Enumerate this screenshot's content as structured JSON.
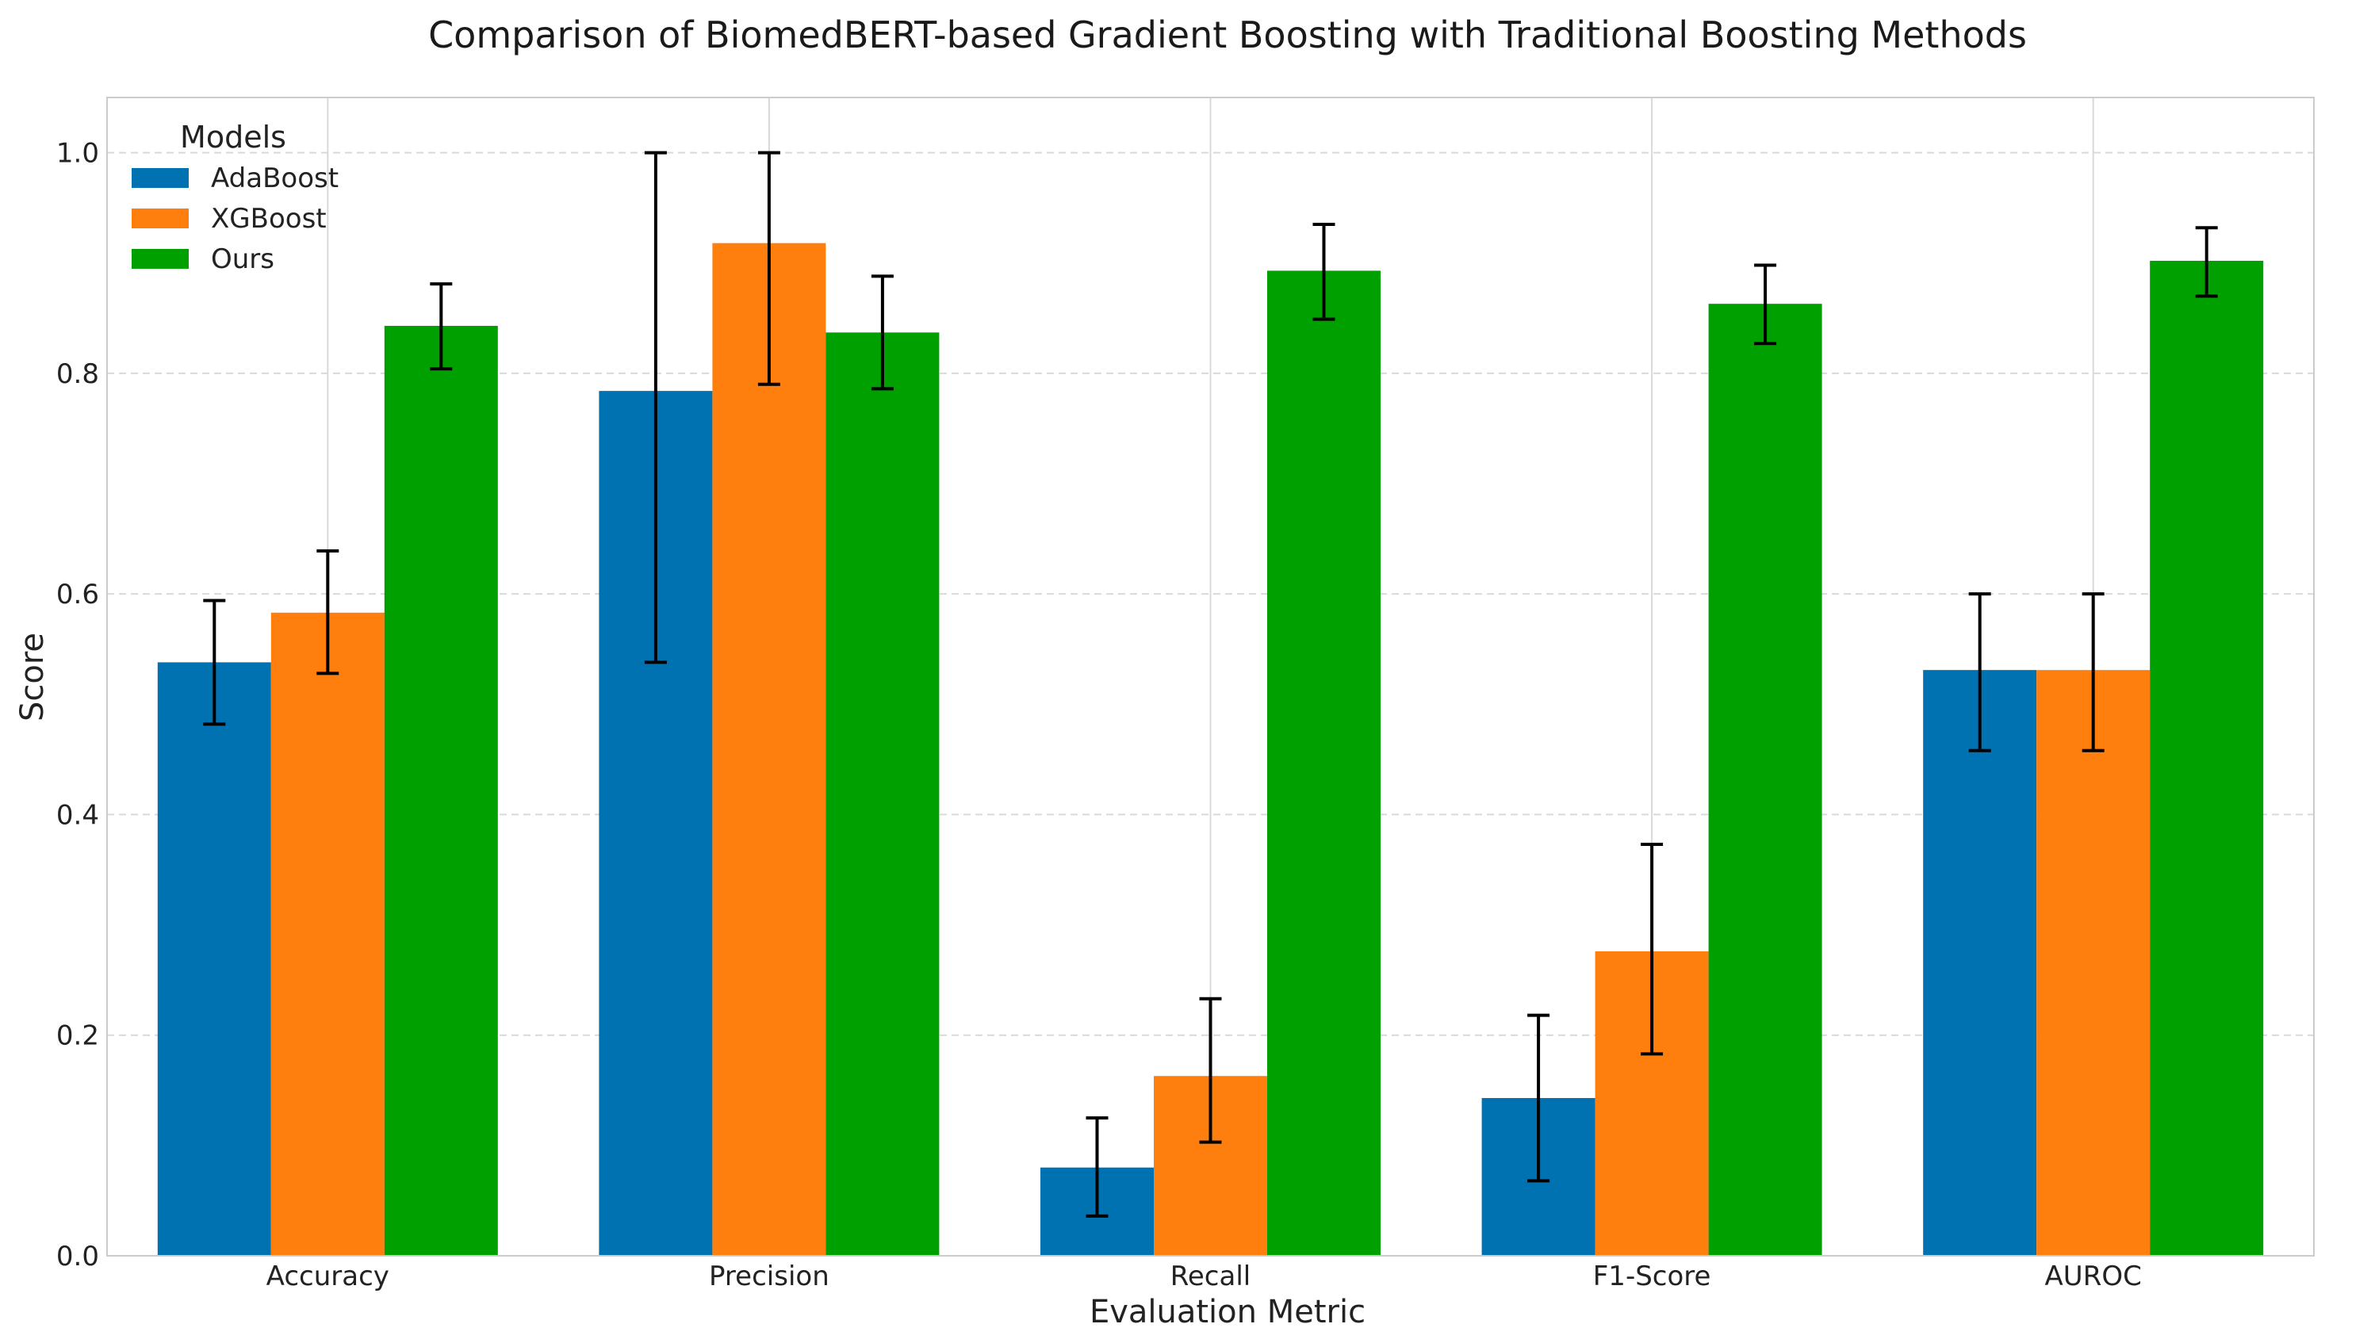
{
  "chart_data": {
    "type": "bar",
    "title": "Comparison of BiomedBERT-based Gradient Boosting with Traditional Boosting Methods",
    "xlabel": "Evaluation Metric",
    "ylabel": "Score",
    "ylim": [
      0,
      1.05
    ],
    "yticks": [
      "0.0",
      "0.2",
      "0.4",
      "0.6",
      "0.8",
      "1.0"
    ],
    "grid": true,
    "categories": [
      "Accuracy",
      "Precision",
      "Recall",
      "F1-Score",
      "AUROC"
    ],
    "legend": {
      "title": "Models",
      "placement": "top-left"
    },
    "series": [
      {
        "name": "AdaBoost",
        "color": "#0072b2",
        "values": [
          0.538,
          0.784,
          0.08,
          0.143,
          0.531
        ],
        "err_low": [
          0.482,
          0.538,
          0.036,
          0.068,
          0.458
        ],
        "err_high": [
          0.594,
          1.0,
          0.125,
          0.218,
          0.6
        ]
      },
      {
        "name": "XGBoost",
        "color": "#ff7f0e",
        "values": [
          0.583,
          0.918,
          0.163,
          0.276,
          0.531
        ],
        "err_low": [
          0.528,
          0.79,
          0.103,
          0.183,
          0.458
        ],
        "err_high": [
          0.639,
          1.0,
          0.233,
          0.373,
          0.6
        ]
      },
      {
        "name": "Ours",
        "color": "#00a000",
        "values": [
          0.843,
          0.837,
          0.893,
          0.863,
          0.902
        ],
        "err_low": [
          0.804,
          0.786,
          0.849,
          0.827,
          0.87
        ],
        "err_high": [
          0.881,
          0.888,
          0.935,
          0.898,
          0.932
        ]
      }
    ]
  }
}
